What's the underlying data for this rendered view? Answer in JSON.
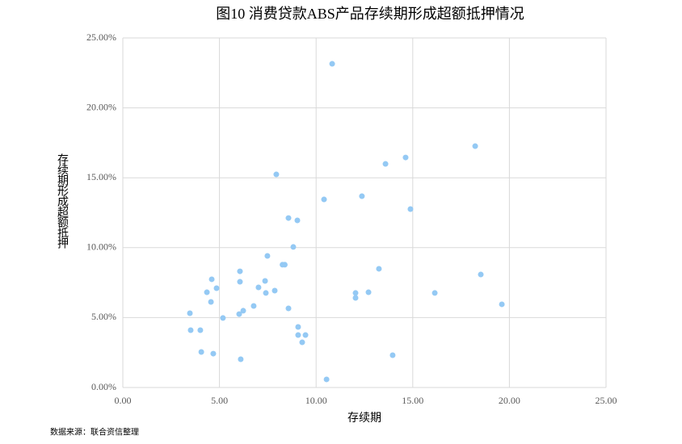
{
  "chart_data": {
    "type": "scatter",
    "title": "图10 消费贷款ABS产品存续期形成超额抵押情况",
    "x_label": "存续期",
    "y_label": "存续期形成超额抵押",
    "source": "数据来源：联合资信整理",
    "color": "#94c9f4",
    "grid": true,
    "xlim": [
      0,
      25
    ],
    "ylim": [
      0,
      25
    ],
    "xticks": [
      {
        "value": 0,
        "label": "0.00"
      },
      {
        "value": 5,
        "label": "5.00"
      },
      {
        "value": 10,
        "label": "10.00"
      },
      {
        "value": 15,
        "label": "15.00"
      },
      {
        "value": 20,
        "label": "20.00"
      },
      {
        "value": 25,
        "label": "25.00"
      }
    ],
    "yticks": [
      {
        "value": 0,
        "label": "0.00%"
      },
      {
        "value": 5,
        "label": "5.00%"
      },
      {
        "value": 10,
        "label": "10.00%"
      },
      {
        "value": 15,
        "label": "15.00%"
      },
      {
        "value": 20,
        "label": "20.00%"
      },
      {
        "value": 25,
        "label": "25.00%"
      }
    ],
    "x": [
      10.83,
      18.23,
      14.63,
      13.59,
      7.94,
      10.41,
      12.37,
      14.88,
      8.57,
      9.03,
      8.82,
      7.48,
      13.25,
      18.52,
      6.06,
      8.26,
      8.38,
      4.6,
      6.06,
      7.36,
      4.85,
      4.35,
      7.02,
      7.86,
      7.4,
      12.04,
      12.71,
      16.14,
      12.04,
      4.56,
      19.61,
      6.77,
      8.57,
      6.23,
      6.02,
      3.47,
      5.18,
      9.07,
      3.51,
      4.01,
      9.45,
      9.07,
      9.28,
      4.06,
      4.68,
      13.96,
      6.1,
      10.54
    ],
    "values": [
      23.15,
      17.26,
      16.45,
      15.99,
      15.24,
      13.45,
      13.68,
      12.76,
      12.12,
      11.95,
      10.05,
      9.41,
      8.49,
      8.08,
      8.31,
      8.78,
      8.78,
      7.74,
      7.56,
      7.62,
      7.1,
      6.81,
      7.16,
      6.93,
      6.76,
      6.76,
      6.81,
      6.76,
      6.41,
      6.12,
      5.95,
      5.83,
      5.66,
      5.49,
      5.25,
      5.31,
      4.97,
      4.33,
      4.1,
      4.1,
      3.75,
      3.75,
      3.23,
      2.54,
      2.42,
      2.31,
      2.02,
      0.58
    ]
  }
}
